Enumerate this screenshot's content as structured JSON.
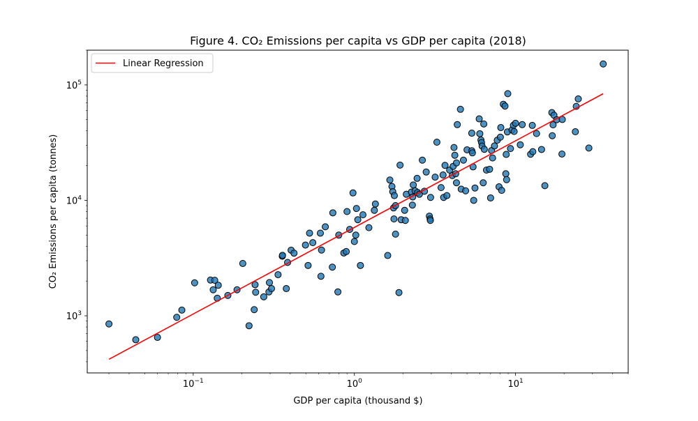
{
  "chart_data": {
    "type": "scatter",
    "title": "Figure 4. CO₂ Emissions per capita vs GDP per capita (2018)",
    "xlabel": "GDP per capita (thousand $)",
    "ylabel": "CO₂ Emissions per capita (tonnes)",
    "x_scale": "log",
    "y_scale": "log",
    "xlim": [
      0.022,
      50
    ],
    "ylim": [
      320,
      200000
    ],
    "x_ticks": [
      {
        "value": 0.1,
        "base": "10",
        "exp": "−1"
      },
      {
        "value": 1,
        "base": "10",
        "exp": "0"
      },
      {
        "value": 10,
        "base": "10",
        "exp": "1"
      }
    ],
    "y_ticks": [
      {
        "value": 1000,
        "base": "10",
        "exp": "3"
      },
      {
        "value": 10000,
        "base": "10",
        "exp": "4"
      },
      {
        "value": 100000,
        "base": "10",
        "exp": "5"
      }
    ],
    "grid": false,
    "legend": {
      "position": "top-left",
      "label": "Linear Regression"
    },
    "colors": {
      "point_fill": "#1f77b4",
      "point_edge": "#000000",
      "regression_line": "#ff0000"
    },
    "regression_line": {
      "x": [
        0.03,
        35
      ],
      "y": [
        420,
        84000
      ]
    },
    "points": [
      [
        0.03,
        850
      ],
      [
        0.044,
        620
      ],
      [
        0.06,
        650
      ],
      [
        0.079,
        970
      ],
      [
        0.085,
        1120
      ],
      [
        0.102,
        1930
      ],
      [
        0.128,
        2040
      ],
      [
        0.133,
        1680
      ],
      [
        0.136,
        2030
      ],
      [
        0.141,
        1420
      ],
      [
        0.143,
        1840
      ],
      [
        0.164,
        1500
      ],
      [
        0.187,
        1680
      ],
      [
        0.203,
        2840
      ],
      [
        0.222,
        820
      ],
      [
        0.239,
        1130
      ],
      [
        0.242,
        1860
      ],
      [
        0.244,
        1600
      ],
      [
        0.274,
        1460
      ],
      [
        0.295,
        1610
      ],
      [
        0.297,
        1940
      ],
      [
        0.306,
        1720
      ],
      [
        0.336,
        2270
      ],
      [
        0.357,
        3280
      ],
      [
        0.358,
        3340
      ],
      [
        0.378,
        1720
      ],
      [
        0.385,
        2900
      ],
      [
        0.405,
        3700
      ],
      [
        0.422,
        3490
      ],
      [
        0.497,
        4100
      ],
      [
        0.516,
        2730
      ],
      [
        0.527,
        5200
      ],
      [
        0.552,
        4300
      ],
      [
        0.615,
        5200
      ],
      [
        0.62,
        2200
      ],
      [
        0.625,
        3710
      ],
      [
        0.66,
        5900
      ],
      [
        0.73,
        2640
      ],
      [
        0.735,
        7800
      ],
      [
        0.79,
        1610
      ],
      [
        0.8,
        5000
      ],
      [
        0.86,
        3500
      ],
      [
        0.89,
        3600
      ],
      [
        0.9,
        8000
      ],
      [
        0.935,
        5600
      ],
      [
        0.98,
        11600
      ],
      [
        1.0,
        4400
      ],
      [
        1.02,
        5000
      ],
      [
        1.03,
        8500
      ],
      [
        1.05,
        6800
      ],
      [
        1.09,
        2730
      ],
      [
        1.13,
        7500
      ],
      [
        1.23,
        5800
      ],
      [
        1.33,
        8200
      ],
      [
        1.35,
        9300
      ],
      [
        1.61,
        3330
      ],
      [
        1.66,
        15000
      ],
      [
        1.71,
        13200
      ],
      [
        1.73,
        11900
      ],
      [
        1.75,
        8600
      ],
      [
        1.76,
        6900
      ],
      [
        1.77,
        11000
      ],
      [
        1.8,
        9000
      ],
      [
        1.8,
        5100
      ],
      [
        1.89,
        1590
      ],
      [
        1.92,
        20200
      ],
      [
        1.95,
        6800
      ],
      [
        2.05,
        8200
      ],
      [
        2.07,
        6700
      ],
      [
        2.1,
        11300
      ],
      [
        2.26,
        11800
      ],
      [
        2.29,
        9100
      ],
      [
        2.3,
        10700
      ],
      [
        2.32,
        13600
      ],
      [
        2.38,
        12100
      ],
      [
        2.45,
        15500
      ],
      [
        2.47,
        11700
      ],
      [
        2.53,
        11300
      ],
      [
        2.64,
        22300
      ],
      [
        2.72,
        12000
      ],
      [
        2.79,
        17600
      ],
      [
        2.92,
        7300
      ],
      [
        2.95,
        6900
      ],
      [
        2.96,
        6700
      ],
      [
        2.97,
        10600
      ],
      [
        3.17,
        15900
      ],
      [
        3.25,
        31900
      ],
      [
        3.45,
        12900
      ],
      [
        3.55,
        16600
      ],
      [
        3.58,
        10600
      ],
      [
        3.65,
        20100
      ],
      [
        3.75,
        11000
      ],
      [
        3.9,
        18300
      ],
      [
        4.05,
        16400
      ],
      [
        4.1,
        19700
      ],
      [
        4.15,
        28700
      ],
      [
        4.2,
        24600
      ],
      [
        4.25,
        17000
      ],
      [
        4.3,
        21100
      ],
      [
        4.3,
        14200
      ],
      [
        4.35,
        45300
      ],
      [
        4.55,
        61500
      ],
      [
        4.6,
        12500
      ],
      [
        4.75,
        22300
      ],
      [
        4.9,
        12100
      ],
      [
        5.0,
        27400
      ],
      [
        5.35,
        38200
      ],
      [
        5.35,
        26900
      ],
      [
        5.4,
        25800
      ],
      [
        5.45,
        19500
      ],
      [
        5.5,
        10000
      ],
      [
        5.6,
        12800
      ],
      [
        5.95,
        50800
      ],
      [
        6.0,
        37800
      ],
      [
        6.1,
        33300
      ],
      [
        6.15,
        31700
      ],
      [
        6.2,
        29500
      ],
      [
        6.3,
        14200
      ],
      [
        6.35,
        45900
      ],
      [
        6.4,
        27700
      ],
      [
        6.6,
        18300
      ],
      [
        6.9,
        18600
      ],
      [
        7.0,
        10500
      ],
      [
        7.1,
        27000
      ],
      [
        7.2,
        23300
      ],
      [
        7.4,
        29600
      ],
      [
        7.7,
        33200
      ],
      [
        7.9,
        13100
      ],
      [
        8.05,
        35300
      ],
      [
        8.1,
        42700
      ],
      [
        8.2,
        12200
      ],
      [
        8.4,
        68000
      ],
      [
        8.6,
        65600
      ],
      [
        8.7,
        17000
      ],
      [
        8.75,
        25000
      ],
      [
        8.8,
        15100
      ],
      [
        8.9,
        39200
      ],
      [
        8.95,
        84000
      ],
      [
        9.3,
        28100
      ],
      [
        9.5,
        40700
      ],
      [
        9.7,
        44700
      ],
      [
        9.8,
        39500
      ],
      [
        10.0,
        46500
      ],
      [
        10.7,
        30300
      ],
      [
        11.0,
        45300
      ],
      [
        12.4,
        25100
      ],
      [
        12.7,
        44600
      ],
      [
        12.8,
        26400
      ],
      [
        13.5,
        37900
      ],
      [
        14.5,
        27600
      ],
      [
        15.2,
        13400
      ],
      [
        16.8,
        57600
      ],
      [
        16.9,
        36300
      ],
      [
        17.1,
        45100
      ],
      [
        17.3,
        54700
      ],
      [
        18.0,
        50000
      ],
      [
        19.4,
        25200
      ],
      [
        19.5,
        50200
      ],
      [
        23.5,
        39300
      ],
      [
        23.8,
        65200
      ],
      [
        24.5,
        75700
      ],
      [
        28.5,
        28400
      ],
      [
        35.0,
        152000
      ]
    ]
  }
}
